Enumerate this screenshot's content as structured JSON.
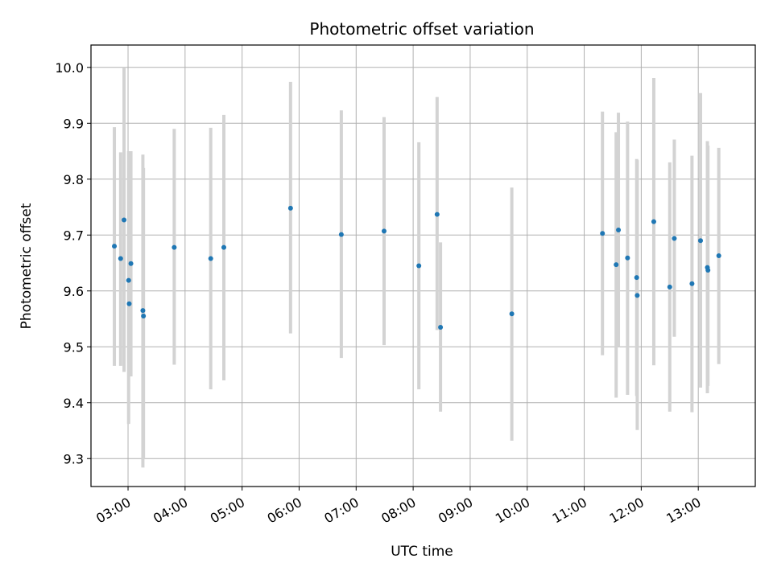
{
  "chart_data": {
    "type": "scatter",
    "title": "Photometric offset variation",
    "xlabel": "UTC time",
    "ylabel": "Photometric offset",
    "x_tick_labels": [
      "03:00",
      "04:00",
      "05:00",
      "06:00",
      "07:00",
      "08:00",
      "09:00",
      "10:00",
      "11:00",
      "12:00",
      "13:00"
    ],
    "x_ticks_hours": [
      3,
      4,
      5,
      6,
      7,
      8,
      9,
      10,
      11,
      12,
      13
    ],
    "y_tick_labels": [
      "9.3",
      "9.4",
      "9.5",
      "9.6",
      "9.7",
      "9.8",
      "9.9",
      "10.0"
    ],
    "y_ticks": [
      9.3,
      9.4,
      9.5,
      9.6,
      9.7,
      9.8,
      9.9,
      10.0
    ],
    "xlim_hours": [
      2.35,
      14.0
    ],
    "ylim": [
      9.25,
      10.04
    ],
    "grid": true,
    "point_color": "#1f77b4",
    "errorbar_color": "#d3d3d3",
    "points": [
      {
        "x": 2.76,
        "y": 9.68,
        "ylow": 9.466,
        "yhigh": 9.893
      },
      {
        "x": 2.87,
        "y": 9.658,
        "ylow": 9.466,
        "yhigh": 9.848
      },
      {
        "x": 2.93,
        "y": 9.727,
        "ylow": 9.455,
        "yhigh": 10.0
      },
      {
        "x": 3.01,
        "y": 9.619,
        "ylow": 9.362,
        "yhigh": 9.85
      },
      {
        "x": 3.02,
        "y": 9.577,
        "ylow": 9.47,
        "yhigh": 9.82
      },
      {
        "x": 3.05,
        "y": 9.649,
        "ylow": 9.447,
        "yhigh": 9.85
      },
      {
        "x": 3.26,
        "y": 9.565,
        "ylow": 9.284,
        "yhigh": 9.844
      },
      {
        "x": 3.27,
        "y": 9.555,
        "ylow": 9.3,
        "yhigh": 9.82
      },
      {
        "x": 3.81,
        "y": 9.678,
        "ylow": 9.468,
        "yhigh": 9.89
      },
      {
        "x": 4.45,
        "y": 9.658,
        "ylow": 9.424,
        "yhigh": 9.892
      },
      {
        "x": 4.68,
        "y": 9.678,
        "ylow": 9.44,
        "yhigh": 9.915
      },
      {
        "x": 5.85,
        "y": 9.748,
        "ylow": 9.524,
        "yhigh": 9.974
      },
      {
        "x": 6.74,
        "y": 9.701,
        "ylow": 9.48,
        "yhigh": 9.923
      },
      {
        "x": 7.49,
        "y": 9.707,
        "ylow": 9.503,
        "yhigh": 9.911
      },
      {
        "x": 8.1,
        "y": 9.645,
        "ylow": 9.424,
        "yhigh": 9.866
      },
      {
        "x": 8.42,
        "y": 9.737,
        "ylow": 9.53,
        "yhigh": 9.947
      },
      {
        "x": 8.48,
        "y": 9.535,
        "ylow": 9.384,
        "yhigh": 9.687
      },
      {
        "x": 9.73,
        "y": 9.559,
        "ylow": 9.332,
        "yhigh": 9.785
      },
      {
        "x": 11.32,
        "y": 9.703,
        "ylow": 9.485,
        "yhigh": 9.921
      },
      {
        "x": 11.56,
        "y": 9.647,
        "ylow": 9.409,
        "yhigh": 9.884
      },
      {
        "x": 11.6,
        "y": 9.709,
        "ylow": 9.5,
        "yhigh": 9.919
      },
      {
        "x": 11.76,
        "y": 9.659,
        "ylow": 9.414,
        "yhigh": 9.903
      },
      {
        "x": 11.92,
        "y": 9.624,
        "ylow": 9.412,
        "yhigh": 9.836
      },
      {
        "x": 11.93,
        "y": 9.592,
        "ylow": 9.351,
        "yhigh": 9.834
      },
      {
        "x": 12.22,
        "y": 9.724,
        "ylow": 9.467,
        "yhigh": 9.981
      },
      {
        "x": 12.5,
        "y": 9.607,
        "ylow": 9.384,
        "yhigh": 9.83
      },
      {
        "x": 12.58,
        "y": 9.694,
        "ylow": 9.518,
        "yhigh": 9.871
      },
      {
        "x": 12.89,
        "y": 9.613,
        "ylow": 9.383,
        "yhigh": 9.842
      },
      {
        "x": 13.04,
        "y": 9.69,
        "ylow": 9.427,
        "yhigh": 9.954
      },
      {
        "x": 13.16,
        "y": 9.642,
        "ylow": 9.417,
        "yhigh": 9.868
      },
      {
        "x": 13.17,
        "y": 9.637,
        "ylow": 9.43,
        "yhigh": 9.86
      },
      {
        "x": 13.36,
        "y": 9.663,
        "ylow": 9.469,
        "yhigh": 9.856
      }
    ]
  }
}
